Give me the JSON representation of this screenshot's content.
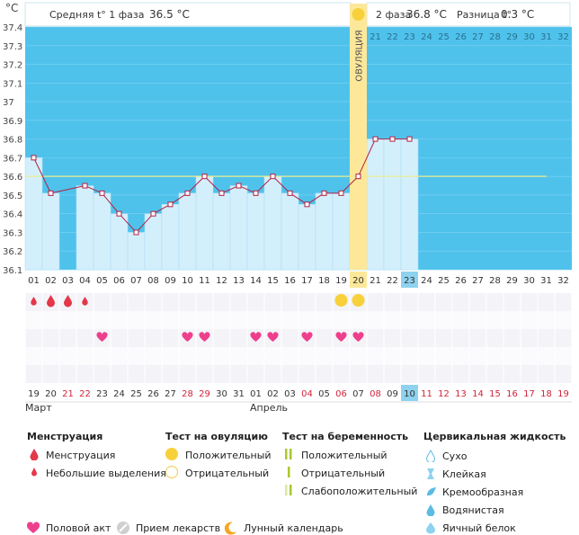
{
  "chart_data": {
    "type": "line",
    "title": "",
    "ylabel": "°C",
    "ylim": [
      36.1,
      37.4
    ],
    "y_ticks": [
      "37.4",
      "37.3",
      "37.2",
      "37.1",
      "37",
      "36.9",
      "36.8",
      "36.7",
      "36.6",
      "36.5",
      "36.4",
      "36.3",
      "36.2",
      "36.1"
    ],
    "cycle_days": [
      "01",
      "02",
      "03",
      "04",
      "05",
      "06",
      "07",
      "08",
      "09",
      "10",
      "11",
      "12",
      "13",
      "14",
      "15",
      "16",
      "17",
      "18",
      "19",
      "20",
      "21",
      "22",
      "23",
      "24",
      "25",
      "26",
      "27",
      "28",
      "29",
      "30",
      "31",
      "32"
    ],
    "ovulation_day_index": 19,
    "today_index": 22,
    "temperatures": [
      36.7,
      36.51,
      null,
      36.55,
      36.51,
      36.4,
      36.3,
      36.4,
      36.45,
      36.51,
      36.6,
      36.51,
      36.55,
      36.51,
      36.6,
      36.51,
      36.45,
      36.51,
      36.51,
      36.6,
      36.8,
      36.8,
      36.8,
      null,
      null,
      null,
      null,
      null,
      null,
      null,
      null,
      null
    ],
    "coverline": 36.6,
    "phase1_label": "Средняя t° 1 фаза",
    "phase1_value": "36.5 °C",
    "phase2_label": "2 фаза",
    "phase2_value": "36.8 °C",
    "difference_label": "Разница t°",
    "difference_value": "0.3 °C",
    "ovulation_label": "ОВУЛЯЦИЯ",
    "calendar_dates": [
      "19",
      "20",
      "21",
      "22",
      "23",
      "24",
      "25",
      "26",
      "27",
      "28",
      "29",
      "30",
      "31",
      "01",
      "02",
      "03",
      "04",
      "05",
      "06",
      "07",
      "08",
      "09",
      "10",
      "11",
      "12",
      "13",
      "14",
      "15",
      "16",
      "17",
      "18",
      "19"
    ],
    "red_dates": [
      2,
      3,
      9,
      10,
      16,
      18,
      20,
      23,
      24,
      25,
      26,
      27,
      28,
      29,
      30,
      31
    ],
    "month_march": "Март",
    "month_april": "Апрель",
    "menstruation": {
      "1": "small",
      "2": "full",
      "3": "full",
      "4": "small"
    },
    "ovulation_tests": {
      "19": "positive",
      "20": "positive"
    },
    "intercourse_days": [
      5,
      10,
      11,
      14,
      15,
      17,
      19,
      20
    ]
  },
  "legend": {
    "menstruation": {
      "title": "Менструация",
      "items": [
        "Менструация",
        "Небольшие выделения"
      ]
    },
    "ovulation_test": {
      "title": "Тест на овуляцию",
      "items": [
        "Положительный",
        "Отрицательный"
      ]
    },
    "pregnancy_test": {
      "title": "Тест на беременность",
      "items": [
        "Положительный",
        "Отрицательный",
        "Слабоположительный"
      ]
    },
    "cervical_fluid": {
      "title": "Цервикальная жидкость",
      "items": [
        "Сухо",
        "Клейкая",
        "Кремообразная",
        "Водянистая",
        "Яичный белок"
      ]
    },
    "bottom": [
      "Половой акт",
      "Прием лекарств",
      "Лунный календарь"
    ]
  },
  "colors": {
    "bg_blue": "#4fc2ec",
    "bar_fill": "#d4effc",
    "line": "#b22244",
    "coverline": "#ecec8e",
    "ovulation": "#fde89a",
    "today": "#8ed2ef",
    "drop": "#e4374a",
    "heart": "#ee3f8d",
    "sun": "#f8d03a"
  }
}
